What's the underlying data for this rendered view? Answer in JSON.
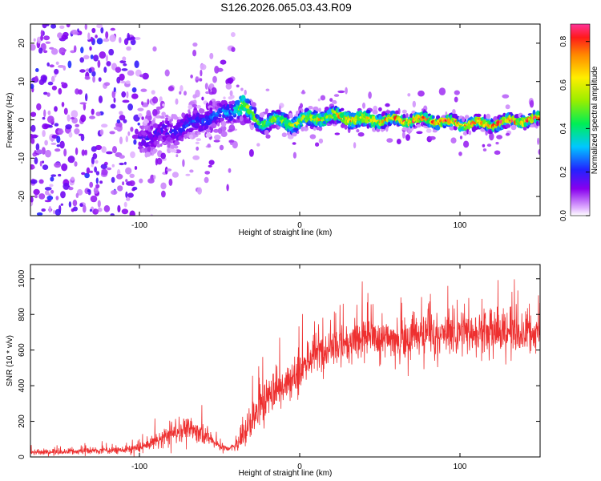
{
  "title": "S126.2026.065.03.43.R09",
  "colors": {
    "snr_line": "#ee3030",
    "axes": "#000000",
    "background": "#ffffff"
  },
  "chart_data": [
    {
      "type": "heatmap",
      "xlabel": "Height of straight line (km)",
      "ylabel": "Frequency (Hz)",
      "xlim": [
        -168,
        150
      ],
      "ylim": [
        -25,
        25
      ],
      "xticks": [
        -100,
        0,
        100
      ],
      "xtick_labels": [
        "-100",
        "0",
        "100"
      ],
      "yticks": [
        -20,
        -10,
        0,
        10,
        20
      ],
      "ytick_labels": [
        "-20",
        "-10",
        "0",
        "10",
        "20"
      ],
      "grid": false,
      "colorbar": {
        "label": "Normalized spectral amplitude",
        "range": [
          0,
          0.88
        ],
        "ticks": [
          0.0,
          0.2,
          0.4,
          0.6,
          0.8
        ],
        "tick_labels": [
          "0.0",
          "0.2",
          "0.4",
          "0.6",
          "0.8"
        ],
        "colormap": "rainbow (white-purple-blue-cyan-green-yellow-red-magenta)"
      },
      "ridge": {
        "x": [
          -100,
          -80,
          -60,
          -45,
          -35,
          -25,
          -15,
          -5,
          5,
          20,
          40,
          60,
          80,
          100,
          120,
          140,
          150
        ],
        "frequency": [
          -5,
          -3,
          0,
          2,
          4,
          -1,
          0,
          -1,
          0,
          1,
          0,
          0,
          0,
          -1,
          -1,
          0,
          0
        ],
        "half_width": [
          4,
          4,
          3,
          3,
          3,
          2,
          2,
          2,
          2,
          2,
          2,
          1.5,
          1.5,
          1.5,
          1.5,
          1.5,
          1.5
        ],
        "peak_amplitude": [
          0.25,
          0.3,
          0.4,
          0.5,
          0.55,
          0.5,
          0.55,
          0.6,
          0.6,
          0.7,
          0.75,
          0.75,
          0.8,
          0.8,
          0.85,
          0.85,
          0.85
        ]
      }
    },
    {
      "type": "line",
      "xlabel": "Height of straight line (km)",
      "ylabel": "SNR (10 * v/v)",
      "xlim": [
        -168,
        150
      ],
      "ylim": [
        0,
        1080
      ],
      "xticks": [
        -100,
        0,
        100
      ],
      "xtick_labels": [
        "-100",
        "0",
        "100"
      ],
      "yticks": [
        0,
        200,
        400,
        600,
        800,
        1000
      ],
      "ytick_labels": [
        "0",
        "200",
        "400",
        "600",
        "800",
        "1000"
      ],
      "grid": false,
      "series": [
        {
          "x": [
            -168,
            -150,
            -130,
            -110,
            -100,
            -90,
            -80,
            -72,
            -65,
            -58,
            -52,
            -45,
            -40,
            -35,
            -30,
            -25,
            -20,
            -15,
            -10,
            -5,
            0,
            5,
            10,
            20,
            30,
            40,
            50,
            60,
            70,
            80,
            90,
            100,
            110,
            120,
            130,
            140,
            150
          ],
          "values": [
            25,
            28,
            35,
            40,
            50,
            90,
            130,
            160,
            155,
            120,
            70,
            45,
            60,
            120,
            200,
            280,
            340,
            380,
            400,
            440,
            480,
            540,
            580,
            630,
            650,
            670,
            670,
            660,
            690,
            680,
            690,
            700,
            700,
            690,
            710,
            690,
            700
          ],
          "noise": [
            15,
            15,
            18,
            20,
            25,
            45,
            55,
            60,
            55,
            45,
            25,
            15,
            30,
            70,
            100,
            120,
            120,
            110,
            100,
            110,
            120,
            120,
            110,
            110,
            110,
            110,
            110,
            110,
            110,
            110,
            110,
            120,
            120,
            120,
            120,
            110,
            110
          ]
        }
      ]
    }
  ]
}
